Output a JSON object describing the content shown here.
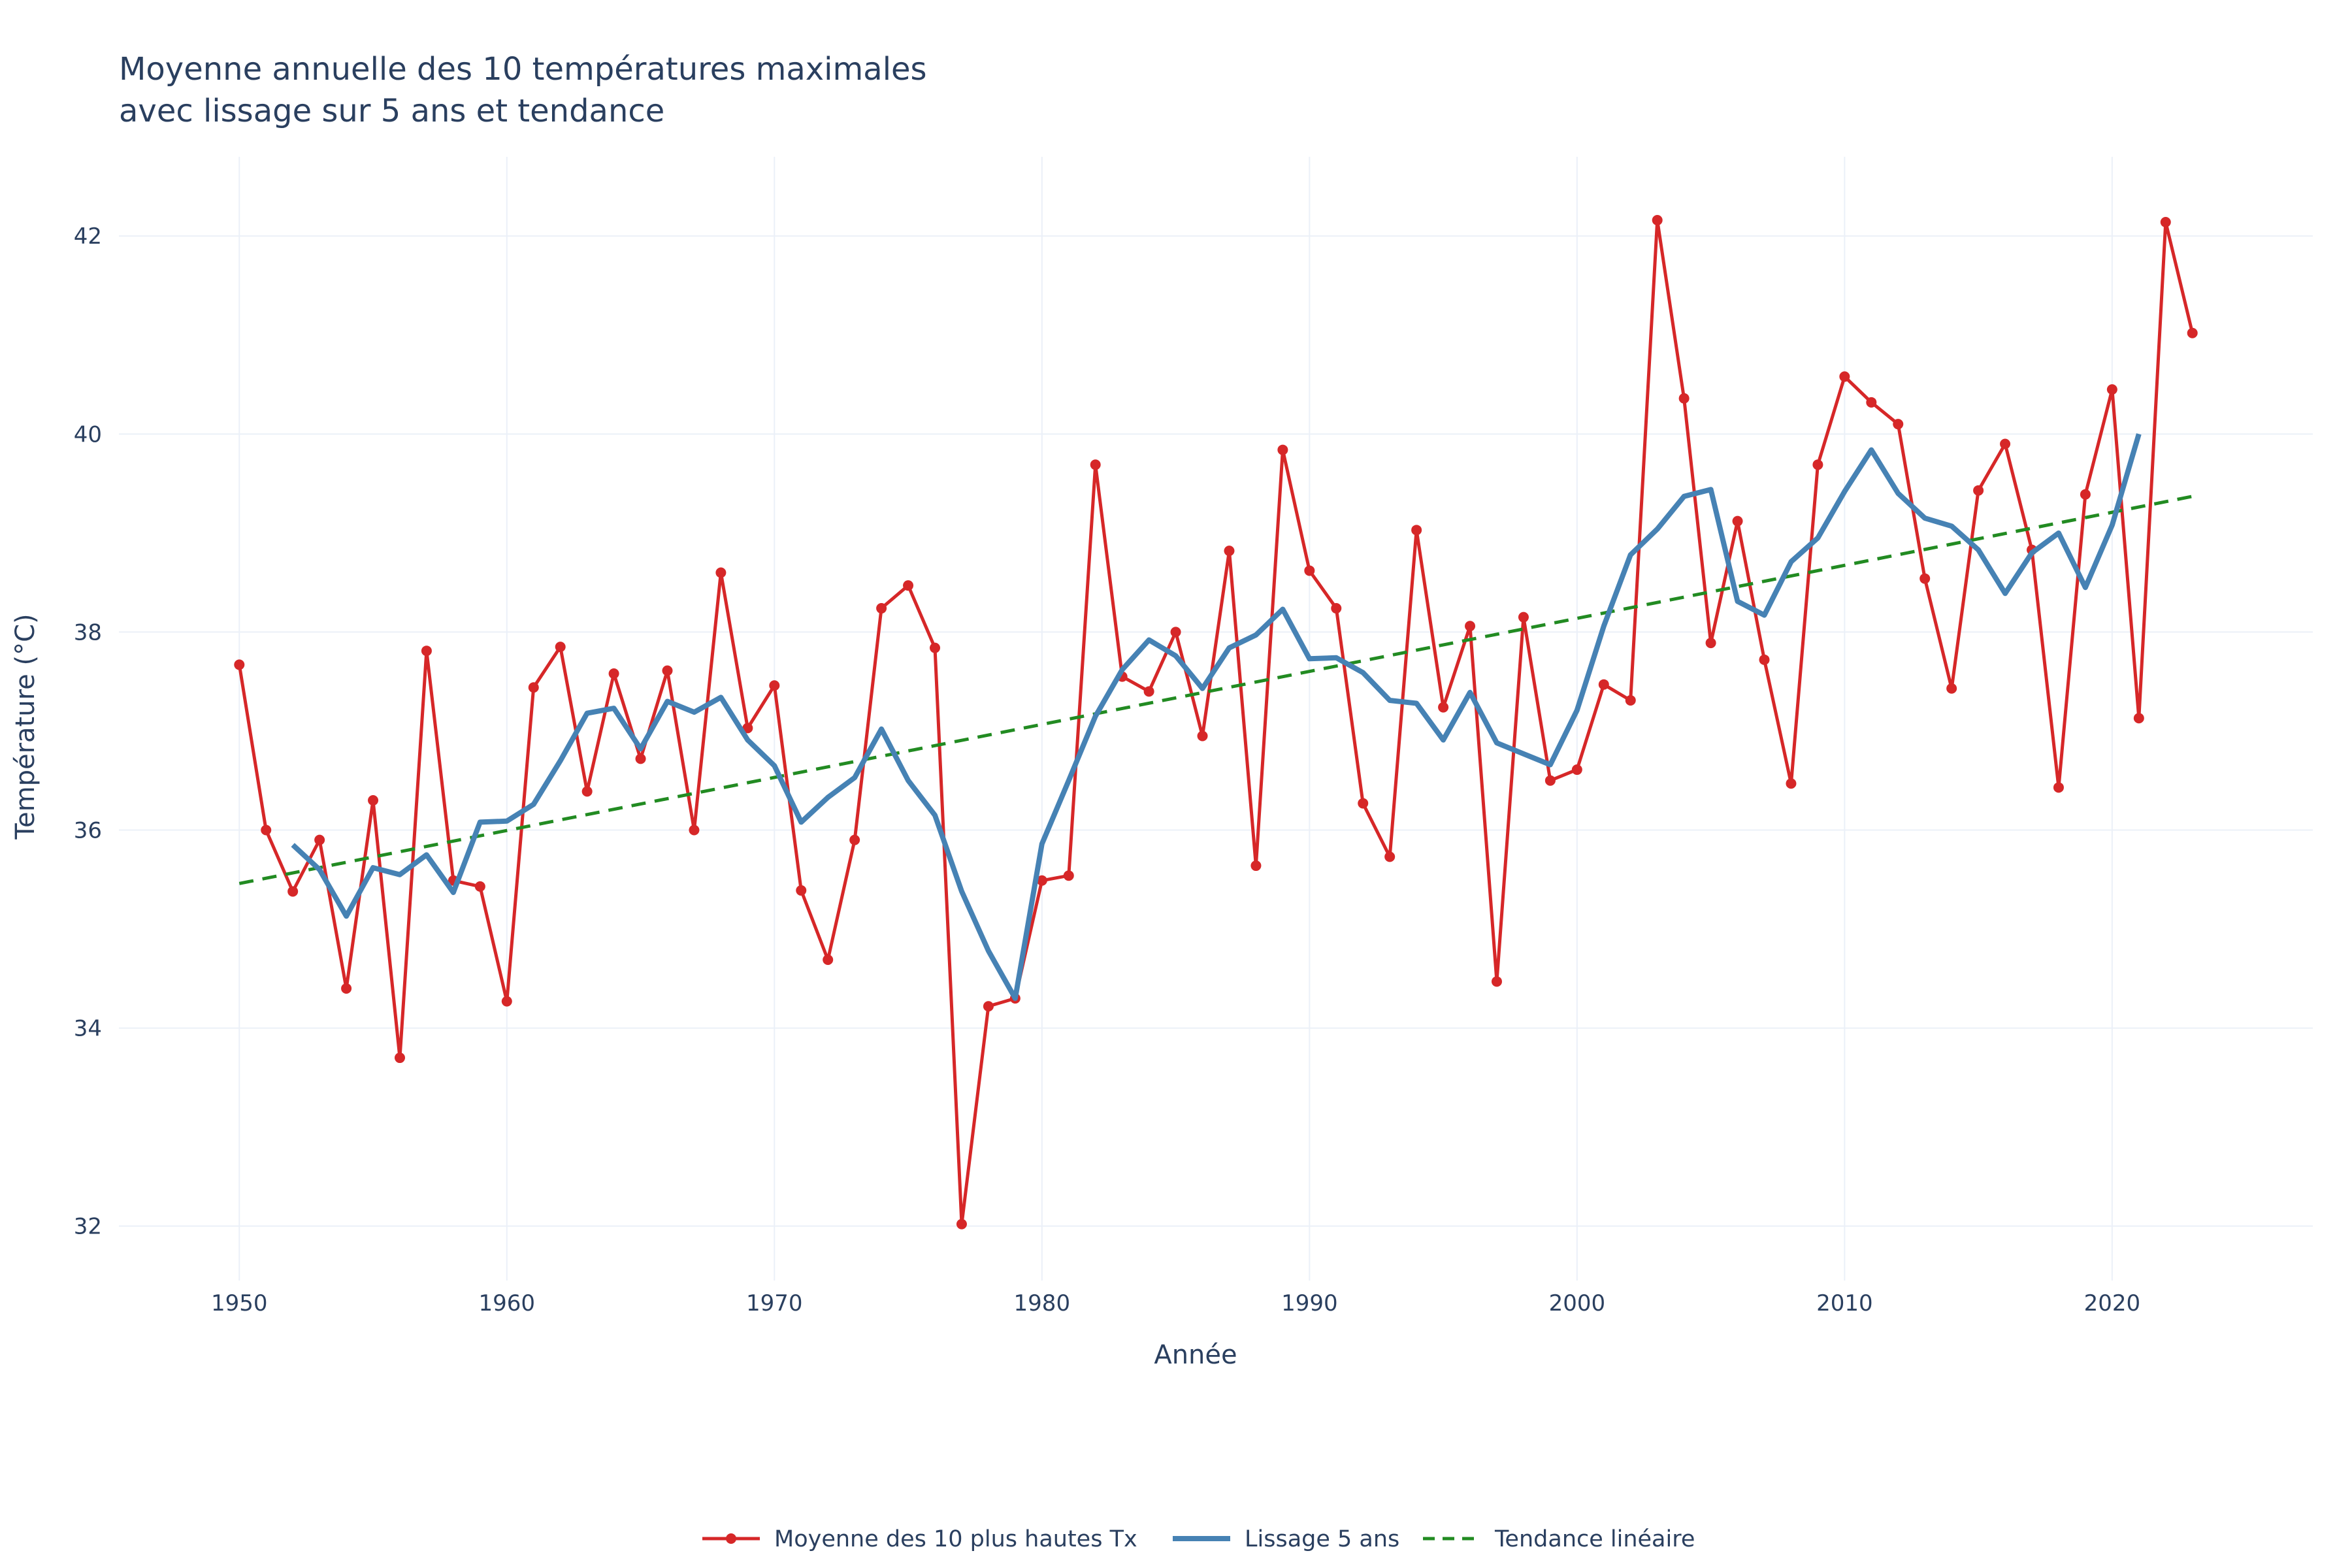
{
  "chart_data": {
    "type": "line",
    "title_lines": [
      "Moyenne annuelle des 10 températures maximales",
      "avec lissage sur 5 ans et tendance"
    ],
    "xlabel": "Année",
    "ylabel": "Température (°C)",
    "xlim": [
      1945.5,
      2027.5
    ],
    "ylim": [
      31.45,
      42.8
    ],
    "xticks": [
      1950,
      1960,
      1970,
      1980,
      1990,
      2000,
      2010,
      2020
    ],
    "yticks": [
      32,
      34,
      36,
      38,
      40,
      42
    ],
    "grid": true,
    "legend_position": "bottom-center",
    "series": [
      {
        "name": "Moyenne des 10 plus hautes Tx",
        "color": "#d62728",
        "style": "line+markers",
        "x": [
          1950,
          1951,
          1952,
          1953,
          1954,
          1955,
          1956,
          1957,
          1958,
          1959,
          1960,
          1961,
          1962,
          1963,
          1964,
          1965,
          1966,
          1967,
          1968,
          1969,
          1970,
          1971,
          1972,
          1973,
          1974,
          1975,
          1976,
          1977,
          1978,
          1979,
          1980,
          1981,
          1982,
          1983,
          1984,
          1985,
          1986,
          1987,
          1988,
          1989,
          1990,
          1991,
          1992,
          1993,
          1994,
          1995,
          1996,
          1997,
          1998,
          1999,
          2000,
          2001,
          2002,
          2003,
          2004,
          2005,
          2006,
          2007,
          2008,
          2009,
          2010,
          2011,
          2012,
          2013,
          2014,
          2015,
          2016,
          2017,
          2018,
          2019,
          2020,
          2021,
          2022,
          2023
        ],
        "y": [
          37.67,
          36.0,
          35.38,
          35.9,
          34.4,
          36.3,
          33.7,
          37.81,
          35.49,
          35.43,
          34.27,
          37.44,
          37.85,
          36.39,
          37.58,
          36.72,
          37.61,
          36.0,
          38.6,
          37.03,
          37.46,
          35.39,
          34.69,
          35.9,
          38.24,
          38.47,
          37.84,
          32.02,
          34.22,
          34.3,
          35.49,
          35.54,
          39.69,
          37.55,
          37.4,
          38.0,
          36.95,
          38.82,
          35.64,
          39.84,
          38.62,
          38.24,
          36.27,
          35.73,
          39.03,
          37.24,
          38.06,
          34.47,
          38.15,
          36.5,
          36.61,
          37.47,
          37.31,
          42.16,
          40.36,
          37.89,
          39.12,
          37.72,
          36.47,
          39.69,
          40.58,
          40.32,
          40.1,
          38.54,
          37.43,
          39.43,
          39.9,
          38.83,
          36.43,
          39.39,
          40.45,
          37.13,
          42.14,
          41.02
        ]
      },
      {
        "name": "Lissage 5 ans",
        "color": "#4682b4",
        "style": "line",
        "x": [
          1952,
          1953,
          1954,
          1955,
          1956,
          1957,
          1958,
          1959,
          1960,
          1961,
          1962,
          1963,
          1964,
          1965,
          1966,
          1967,
          1968,
          1969,
          1970,
          1971,
          1972,
          1973,
          1974,
          1975,
          1976,
          1977,
          1978,
          1979,
          1980,
          1981,
          1982,
          1983,
          1984,
          1985,
          1986,
          1987,
          1988,
          1989,
          1990,
          1991,
          1992,
          1993,
          1994,
          1995,
          1996,
          1997,
          1998,
          1999,
          2000,
          2001,
          2002,
          2003,
          2004,
          2005,
          2006,
          2007,
          2008,
          2009,
          2010,
          2011,
          2012,
          2013,
          2014,
          2015,
          2016,
          2017,
          2018,
          2019,
          2020,
          2021
        ],
        "y": [
          35.85,
          35.6,
          35.13,
          35.62,
          35.55,
          35.75,
          35.37,
          36.08,
          36.09,
          36.26,
          36.7,
          37.18,
          37.23,
          36.82,
          37.3,
          37.19,
          37.34,
          36.91,
          36.65,
          36.08,
          36.33,
          36.53,
          37.02,
          36.5,
          36.15,
          35.38,
          34.78,
          34.3,
          35.86,
          36.5,
          37.15,
          37.62,
          37.92,
          37.76,
          37.43,
          37.84,
          37.97,
          38.23,
          37.73,
          37.74,
          37.59,
          37.31,
          37.28,
          36.91,
          37.39,
          36.88,
          36.77,
          36.66,
          37.21,
          38.06,
          38.78,
          39.04,
          39.37,
          39.44,
          38.31,
          38.17,
          38.71,
          38.95,
          39.42,
          39.84,
          39.4,
          39.15,
          39.07,
          38.83,
          38.39,
          38.8,
          39.0,
          38.45,
          39.08,
          40.0
        ]
      },
      {
        "name": "Tendance linéaire",
        "color": "#228b22",
        "style": "dash",
        "x": [
          1950,
          2023
        ],
        "y": [
          35.46,
          39.37
        ]
      }
    ]
  }
}
